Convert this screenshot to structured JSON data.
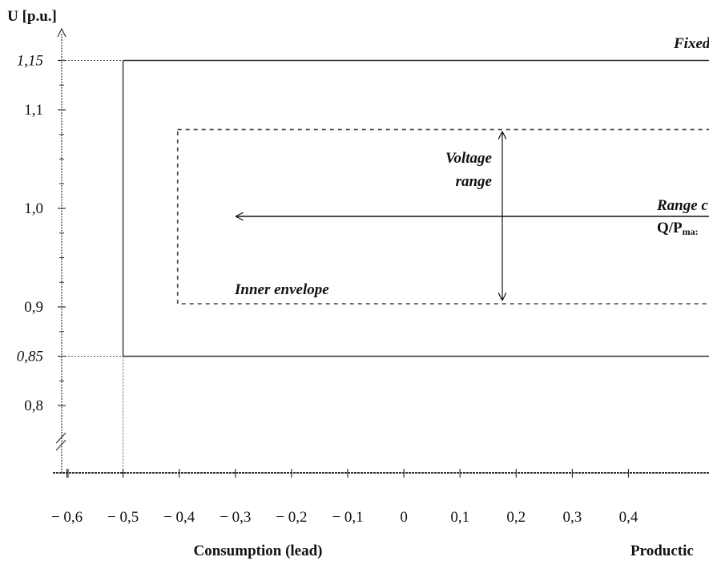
{
  "y_axis": {
    "title": "U [p.u.]",
    "ticks": [
      {
        "value": 1.15,
        "label": "1,15",
        "italic": true
      },
      {
        "value": 1.1,
        "label": "1,1",
        "italic": false
      },
      {
        "value": 1.0,
        "label": "1,0",
        "italic": false
      },
      {
        "value": 0.9,
        "label": "0,9",
        "italic": false
      },
      {
        "value": 0.85,
        "label": "0,85",
        "italic": true
      },
      {
        "value": 0.8,
        "label": "0,8",
        "italic": false
      }
    ],
    "minor_ticks": [
      1.125,
      1.075,
      1.05,
      1.025,
      0.975,
      0.95,
      0.925,
      0.875,
      0.825
    ]
  },
  "x_axis": {
    "ticks": [
      {
        "value": -0.6,
        "label": "− 0,6"
      },
      {
        "value": -0.5,
        "label": "− 0,5"
      },
      {
        "value": -0.4,
        "label": "− 0,4"
      },
      {
        "value": -0.3,
        "label": "− 0,3"
      },
      {
        "value": -0.2,
        "label": "− 0,2"
      },
      {
        "value": -0.1,
        "label": "− 0,1"
      },
      {
        "value": 0,
        "label": "0"
      },
      {
        "value": 0.1,
        "label": "0,1"
      },
      {
        "value": 0.2,
        "label": "0,2"
      },
      {
        "value": 0.3,
        "label": "0,3"
      },
      {
        "value": 0.4,
        "label": "0,4"
      }
    ],
    "left_caption": "Consumption (lead)",
    "right_caption": "Productic"
  },
  "outer_envelope": {
    "label": "Fixed",
    "q_min": -0.5,
    "u_min": 0.85,
    "u_max": 1.15
  },
  "inner_envelope": {
    "label": "Inner envelope",
    "q_min": -0.4,
    "u_min": 0.9,
    "u_max": 1.08
  },
  "voltage_range_label": {
    "line1": "Voltage",
    "line2": "range"
  },
  "q_range_label": {
    "line1": "Range c",
    "line2_main": "Q/P",
    "line2_sub": "ma:"
  }
}
